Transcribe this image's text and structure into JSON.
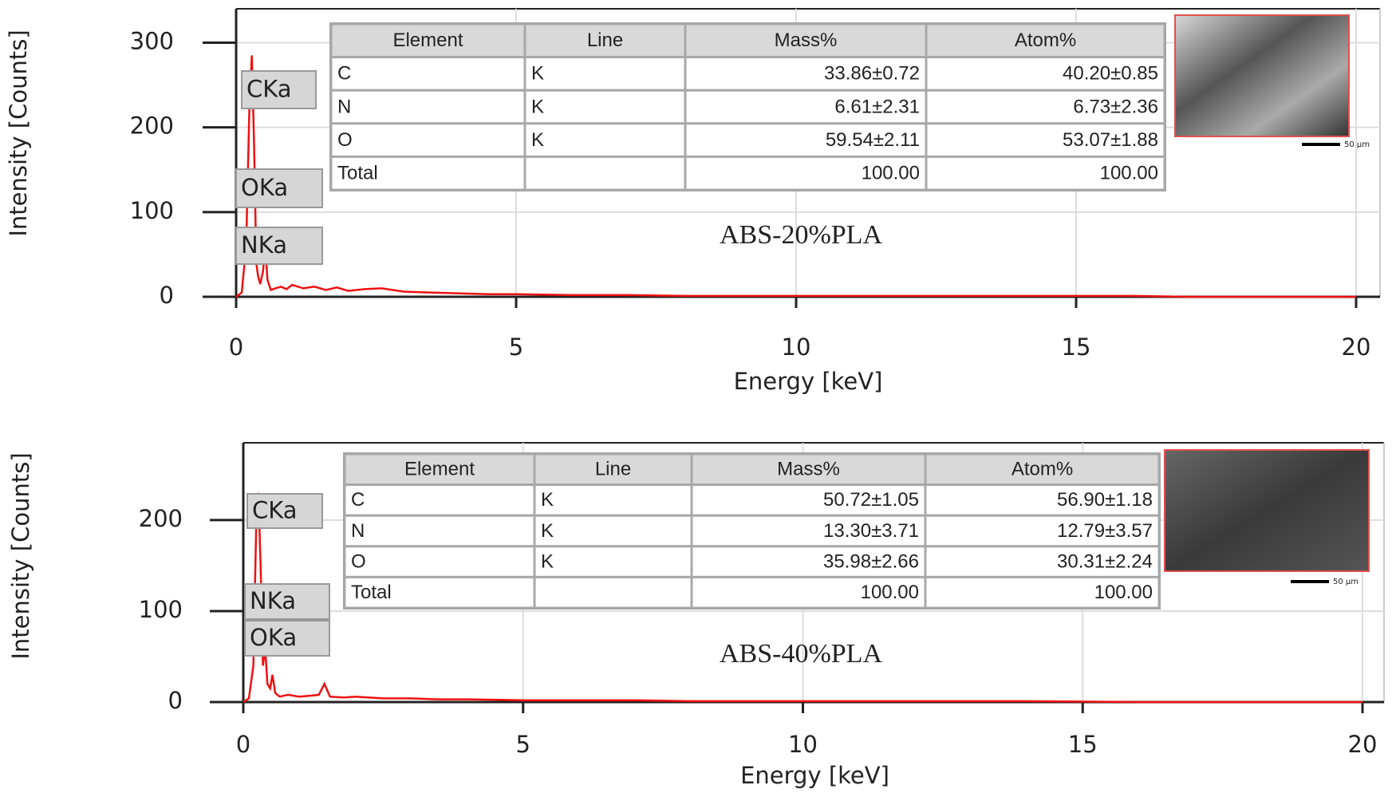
{
  "chart_data": [
    {
      "type": "line",
      "x_label": "Energy [keV]",
      "y_label": "Intensity [Counts]",
      "sample": "ABS-20%PLA",
      "color": "#ee1111",
      "grid": true,
      "xlim": [
        0,
        20
      ],
      "xticks": [
        0,
        5,
        10,
        15,
        20
      ],
      "ylim": [
        0,
        340
      ],
      "yticks": [
        0,
        100,
        200,
        300
      ],
      "x": [
        0,
        0.1,
        0.18,
        0.24,
        0.28,
        0.32,
        0.36,
        0.39,
        0.43,
        0.48,
        0.52,
        0.56,
        0.62,
        0.7,
        0.8,
        0.9,
        1.0,
        1.2,
        1.4,
        1.6,
        1.8,
        2.0,
        2.3,
        2.6,
        3.0,
        3.5,
        4.0,
        4.5,
        5,
        6,
        7,
        8,
        9,
        10,
        11,
        12,
        13,
        14,
        15,
        16,
        17,
        18,
        19,
        20
      ],
      "values": [
        0,
        5,
        60,
        230,
        285,
        180,
        40,
        25,
        15,
        30,
        60,
        20,
        8,
        10,
        12,
        9,
        14,
        10,
        12,
        8,
        11,
        7,
        9,
        10,
        6,
        5,
        4,
        3,
        3,
        2,
        2,
        1,
        1,
        1,
        1,
        1,
        1,
        1,
        1,
        1,
        0,
        0,
        0,
        0
      ],
      "annotations": [
        "CKa",
        "OKa",
        "NKa"
      ],
      "scale_bar": "50 µm",
      "table": {
        "columns": [
          "Element",
          "Line",
          "Mass%",
          "Atom%"
        ],
        "rows": [
          [
            "C",
            "K",
            "33.86±0.72",
            "40.20±0.85"
          ],
          [
            "N",
            "K",
            "6.61±2.31",
            "6.73±2.36"
          ],
          [
            "O",
            "K",
            "59.54±2.11",
            "53.07±1.88"
          ],
          [
            "Total",
            "",
            "100.00",
            "100.00"
          ]
        ]
      }
    },
    {
      "type": "line",
      "x_label": "Energy [keV]",
      "y_label": "Intensity [Counts]",
      "sample": "ABS-40%PLA",
      "color": "#ee1111",
      "grid": true,
      "xlim": [
        0,
        20
      ],
      "xticks": [
        0,
        5,
        10,
        15,
        20
      ],
      "ylim": [
        0,
        285
      ],
      "yticks": [
        0,
        100,
        200
      ],
      "x": [
        0,
        0.1,
        0.18,
        0.23,
        0.27,
        0.31,
        0.35,
        0.39,
        0.43,
        0.48,
        0.52,
        0.57,
        0.65,
        0.8,
        1.0,
        1.2,
        1.35,
        1.45,
        1.55,
        1.8,
        2.0,
        2.5,
        3,
        3.5,
        4,
        5,
        6,
        7,
        8,
        9,
        10,
        12,
        14,
        16,
        18,
        20
      ],
      "values": [
        0,
        4,
        40,
        190,
        230,
        150,
        40,
        60,
        20,
        15,
        30,
        10,
        6,
        8,
        6,
        7,
        8,
        20,
        6,
        5,
        6,
        4,
        4,
        3,
        3,
        2,
        2,
        2,
        1,
        1,
        1,
        1,
        1,
        0,
        0,
        0
      ],
      "annotations": [
        "CKa",
        "NKa",
        "OKa"
      ],
      "scale_bar": "50 µm",
      "table": {
        "columns": [
          "Element",
          "Line",
          "Mass%",
          "Atom%"
        ],
        "rows": [
          [
            "C",
            "K",
            "50.72±1.05",
            "56.90±1.18"
          ],
          [
            "N",
            "K",
            "13.30±3.71",
            "12.79±3.57"
          ],
          [
            "O",
            "K",
            "35.98±2.66",
            "30.31±2.24"
          ],
          [
            "Total",
            "",
            "100.00",
            "100.00"
          ]
        ]
      }
    }
  ]
}
